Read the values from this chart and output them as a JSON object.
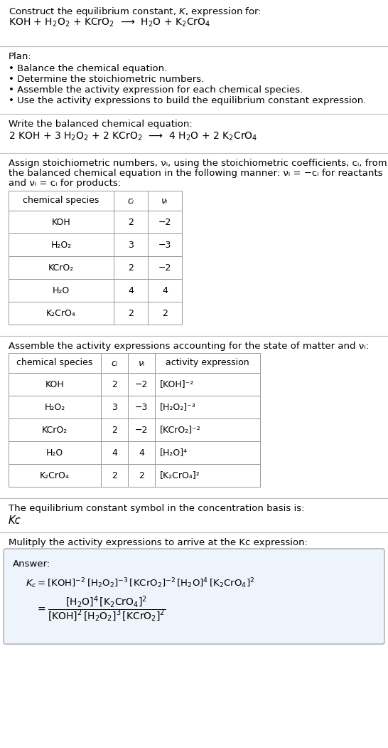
{
  "title_line1": "Construct the equilibrium constant, $K$, expression for:",
  "title_line2": "KOH + H$_2$O$_2$ + KCrO$_2$  ⟶  H$_2$O + K$_2$CrO$_4$",
  "plan_header": "Plan:",
  "plan_items": [
    "• Balance the chemical equation.",
    "• Determine the stoichiometric numbers.",
    "• Assemble the activity expression for each chemical species.",
    "• Use the activity expressions to build the equilibrium constant expression."
  ],
  "balanced_header": "Write the balanced chemical equation:",
  "balanced_eq": "2 KOH + 3 H$_2$O$_2$ + 2 KCrO$_2$  ⟶  4 H$_2$O + 2 K$_2$CrO$_4$",
  "stoich_header_parts": [
    "Assign stoichiometric numbers, ν",
    "i",
    ", using the stoichiometric coefficients, ",
    "c",
    "i",
    ", from",
    "\nthe balanced chemical equation in the following manner: ν",
    "i",
    " = −",
    "c",
    "i",
    " for reactants",
    "\nand ν",
    "i",
    " = ",
    "c",
    "i",
    " for products:"
  ],
  "table1_headers": [
    "chemical species",
    "cᵢ",
    "νᵢ"
  ],
  "table1_rows": [
    [
      "KOH",
      "2",
      "−2"
    ],
    [
      "H₂O₂",
      "3",
      "−3"
    ],
    [
      "KCrO₂",
      "2",
      "−2"
    ],
    [
      "H₂O",
      "4",
      "4"
    ],
    [
      "K₂CrO₄",
      "2",
      "2"
    ]
  ],
  "activity_header_parts": [
    "Assemble the activity expressions accounting for the state of matter and ν",
    "i",
    ":"
  ],
  "table2_headers": [
    "chemical species",
    "cᵢ",
    "νᵢ",
    "activity expression"
  ],
  "table2_rows": [
    [
      "KOH",
      "2",
      "−2",
      "[KOH]⁻²"
    ],
    [
      "H₂O₂",
      "3",
      "−3",
      "[H₂O₂]⁻³"
    ],
    [
      "KCrO₂",
      "2",
      "−2",
      "[KCrO₂]⁻²"
    ],
    [
      "H₂O",
      "4",
      "4",
      "[H₂O]⁴"
    ],
    [
      "K₂CrO₄",
      "2",
      "2",
      "[K₂CrO₄]²"
    ]
  ],
  "kc_header": "The equilibrium constant symbol in the concentration basis is:",
  "kc_symbol": "Kᴄ",
  "multiply_header_parts": [
    "Mulitply the activity expressions to arrive at the K",
    "c",
    " expression:"
  ],
  "answer_label": "Answer:",
  "answer_line1_parts": [
    "K",
    "c",
    " = [KOH]",
    "⁻²",
    " [H₂O₂]",
    "⁻³",
    " [KCrO₂]",
    "⁻²",
    " [H₂O]",
    "⁴",
    " [K₂CrO₄]",
    "²"
  ],
  "bg_color": "#ffffff",
  "text_color": "#000000",
  "separator_color": "#bbbbbb",
  "answer_box_bg": "#eef4fb",
  "answer_border_color": "#aaaaaa",
  "table_border_color": "#999999"
}
